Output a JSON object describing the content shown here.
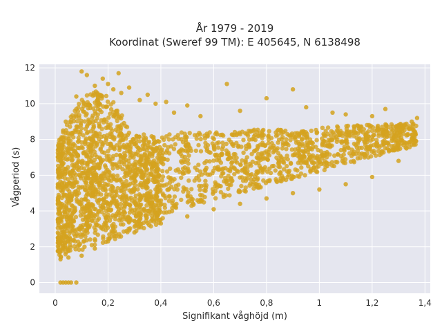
{
  "chart_data": {
    "type": "scatter",
    "title_line1": "År 1979 - 2019",
    "title_line2": "Koordinat (Sweref 99 TM): E 405645, N 6138498",
    "xlabel": "Signifikant våghöjd (m)",
    "ylabel": "Vågperiod (s)",
    "xlim": [
      -0.06,
      1.42
    ],
    "ylim": [
      -0.6,
      12.2
    ],
    "x_ticks": [
      0,
      0.2,
      0.4,
      0.6,
      0.8,
      1.0,
      1.2,
      1.4
    ],
    "x_tick_labels": [
      "0",
      "0,2",
      "0,4",
      "0,6",
      "0,8",
      "1",
      "1,2",
      "1,4"
    ],
    "y_ticks": [
      0,
      2,
      4,
      6,
      8,
      10,
      12
    ],
    "y_tick_labels": [
      "0",
      "2",
      "4",
      "6",
      "8",
      "10",
      "12"
    ],
    "grid": true,
    "colors": {
      "marker": "#d4a21f",
      "plot_bg": "#e5e6ef",
      "grid": "#ffffff"
    },
    "points": [
      [
        0.02,
        0
      ],
      [
        0.03,
        0
      ],
      [
        0.04,
        0
      ],
      [
        0.05,
        0
      ],
      [
        0.06,
        0
      ],
      [
        0.08,
        0
      ],
      [
        0.1,
        11.8
      ],
      [
        0.12,
        11.6
      ],
      [
        0.18,
        11.4
      ],
      [
        0.24,
        11.7
      ],
      [
        0.2,
        11.1
      ],
      [
        0.15,
        11.0
      ],
      [
        0.08,
        10.4
      ],
      [
        0.25,
        10.6
      ],
      [
        0.32,
        10.2
      ],
      [
        0.38,
        10.0
      ],
      [
        0.42,
        10.1
      ],
      [
        0.5,
        9.9
      ],
      [
        0.65,
        11.1
      ],
      [
        0.8,
        10.3
      ],
      [
        0.9,
        10.8
      ],
      [
        0.95,
        9.8
      ],
      [
        1.05,
        9.5
      ],
      [
        1.1,
        9.4
      ],
      [
        1.2,
        9.3
      ],
      [
        1.25,
        9.7
      ],
      [
        1.35,
        9.0
      ],
      [
        1.37,
        9.2
      ],
      [
        1.3,
        8.8
      ],
      [
        1.15,
        8.6
      ],
      [
        0.7,
        9.6
      ],
      [
        0.55,
        9.3
      ],
      [
        0.45,
        9.5
      ],
      [
        0.35,
        10.5
      ],
      [
        0.28,
        10.9
      ],
      [
        0.22,
        10.8
      ],
      [
        0.04,
        9.0
      ],
      [
        0.03,
        8.5
      ],
      [
        0.02,
        7.2
      ],
      [
        0.01,
        5.5
      ],
      [
        0.01,
        3.5
      ],
      [
        0.01,
        2.5
      ],
      [
        0.02,
        1.3
      ],
      [
        0.05,
        1.4
      ],
      [
        0.1,
        1.5
      ],
      [
        0.15,
        1.9
      ],
      [
        0.2,
        2.3
      ],
      [
        0.3,
        2.8
      ],
      [
        0.4,
        3.3
      ],
      [
        0.5,
        3.7
      ],
      [
        0.6,
        4.1
      ],
      [
        0.7,
        4.4
      ],
      [
        0.8,
        4.7
      ],
      [
        0.9,
        5.0
      ],
      [
        1.0,
        5.2
      ],
      [
        1.1,
        5.5
      ],
      [
        1.2,
        5.9
      ],
      [
        1.3,
        6.8
      ],
      [
        1.33,
        7.5
      ],
      [
        1.36,
        8.1
      ]
    ]
  }
}
